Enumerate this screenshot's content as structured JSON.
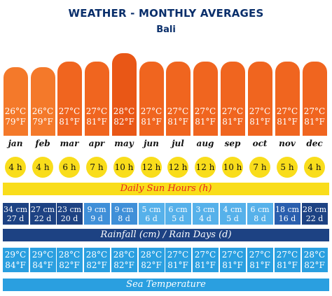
{
  "header": {
    "title": "WEATHER - MONTHLY AVERAGES",
    "location": "Bali"
  },
  "months": [
    {
      "name": "jan",
      "air_c": "26°C",
      "air_f": "79°F",
      "air_color": "#f4792a",
      "sun": "4 h",
      "rain_cm": "34 cm",
      "rain_days": "27 d",
      "rain_color": "#1d4283",
      "sea_c": "29°C",
      "sea_f": "84°F"
    },
    {
      "name": "feb",
      "air_c": "26°C",
      "air_f": "79°F",
      "air_color": "#f4792a",
      "sun": "4 h",
      "rain_cm": "27 cm",
      "rain_days": "22 d",
      "rain_color": "#1d4283",
      "sea_c": "29°C",
      "sea_f": "84°F"
    },
    {
      "name": "mar",
      "air_c": "27°C",
      "air_f": "81°F",
      "air_color": "#f0651f",
      "sun": "6 h",
      "rain_cm": "23 cm",
      "rain_days": "20 d",
      "rain_color": "#1d4283",
      "sea_c": "28°C",
      "sea_f": "82°F"
    },
    {
      "name": "apr",
      "air_c": "27°C",
      "air_f": "81°F",
      "air_color": "#f0651f",
      "sun": "7 h",
      "rain_cm": "9 cm",
      "rain_days": "9 d",
      "rain_color": "#3f8fd8",
      "sea_c": "28°C",
      "sea_f": "82°F"
    },
    {
      "name": "may",
      "air_c": "28°C",
      "air_f": "82°F",
      "air_color": "#e95716",
      "sun": "10 h",
      "rain_cm": "9 cm",
      "rain_days": "8 d",
      "rain_color": "#3f8fd8",
      "sea_c": "28°C",
      "sea_f": "82°F"
    },
    {
      "name": "jun",
      "air_c": "27°C",
      "air_f": "81°F",
      "air_color": "#f0651f",
      "sun": "12 h",
      "rain_cm": "5 cm",
      "rain_days": "6 d",
      "rain_color": "#56b1ea",
      "sea_c": "28°C",
      "sea_f": "82°F"
    },
    {
      "name": "jul",
      "air_c": "27°C",
      "air_f": "81°F",
      "air_color": "#f0651f",
      "sun": "12 h",
      "rain_cm": "6 cm",
      "rain_days": "5 d",
      "rain_color": "#56b1ea",
      "sea_c": "27°C",
      "sea_f": "81°F"
    },
    {
      "name": "aug",
      "air_c": "27°C",
      "air_f": "81°F",
      "air_color": "#f0651f",
      "sun": "12 h",
      "rain_cm": "3 cm",
      "rain_days": "4 d",
      "rain_color": "#56b1ea",
      "sea_c": "27°C",
      "sea_f": "81°F"
    },
    {
      "name": "sep",
      "air_c": "27°C",
      "air_f": "81°F",
      "air_color": "#f0651f",
      "sun": "10 h",
      "rain_cm": "4 cm",
      "rain_days": "5 d",
      "rain_color": "#56b1ea",
      "sea_c": "27°C",
      "sea_f": "81°F"
    },
    {
      "name": "oct",
      "air_c": "27°C",
      "air_f": "81°F",
      "air_color": "#f0651f",
      "sun": "7 h",
      "rain_cm": "6 cm",
      "rain_days": "8 d",
      "rain_color": "#56b1ea",
      "sea_c": "27°C",
      "sea_f": "81°F"
    },
    {
      "name": "nov",
      "air_c": "27°C",
      "air_f": "81°F",
      "air_color": "#f0651f",
      "sun": "5 h",
      "rain_cm": "18 cm",
      "rain_days": "16 d",
      "rain_color": "#2a5fae",
      "sea_c": "27°C",
      "sea_f": "81°F"
    },
    {
      "name": "dec",
      "air_c": "27°C",
      "air_f": "81°F",
      "air_color": "#f0651f",
      "sun": "4 h",
      "rain_cm": "28 cm",
      "rain_days": "22 d",
      "rain_color": "#1d4283",
      "sea_c": "28°C",
      "sea_f": "82°F"
    }
  ],
  "bands": {
    "sun_label": "Daily Sun Hours (h)",
    "rain_label": "Rainfall (cm) / Rain Days (d)",
    "sea_label": "Sea Temperature"
  },
  "colors": {
    "title": "#0a2f6b",
    "sun_band": "#f9dd1b",
    "sun_text": "#e8251b",
    "rain_band": "#1d4283",
    "sea_box": "#2a9fe0",
    "sea_band": "#2a9fe0"
  }
}
